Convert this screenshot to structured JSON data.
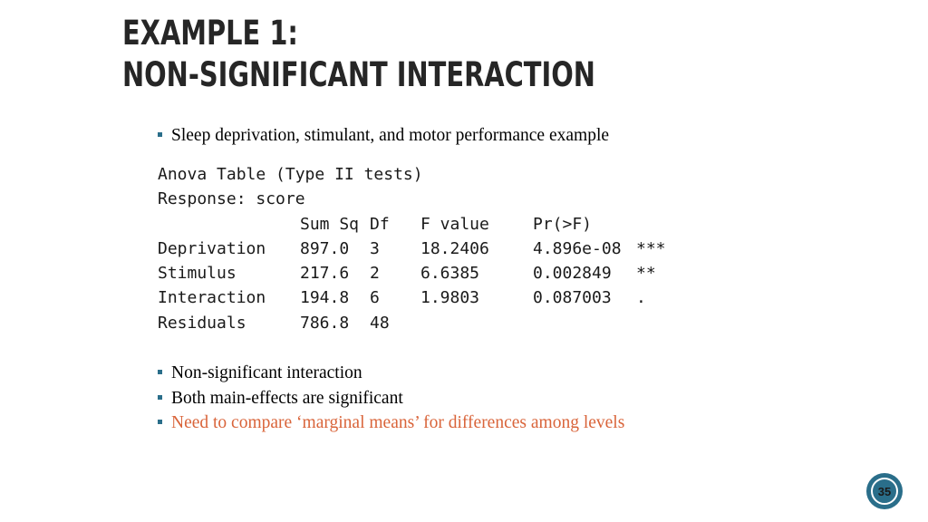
{
  "slide": {
    "title_line1": "EXAMPLE 1:",
    "title_line2": "NON-SIGNIFICANT INTERACTION",
    "page_number": "35",
    "accent_color": "#2a6e8a",
    "highlight_color": "#d9643a"
  },
  "intro_bullets": [
    {
      "text": "Sleep deprivation, stimulant, and motor performance example"
    }
  ],
  "anova": {
    "heading": "Anova Table (Type II tests)",
    "response": "Response: score",
    "columns": [
      "",
      "Sum Sq",
      "Df",
      "F value",
      "Pr(>F)",
      ""
    ],
    "rows": [
      {
        "term": "Deprivation",
        "sum_sq": "897.0",
        "df": "3",
        "f_value": "18.2406",
        "p": "4.896e-08",
        "signif": "***"
      },
      {
        "term": "Stimulus",
        "sum_sq": "217.6",
        "df": "2",
        "f_value": "6.6385",
        "p": "0.002849",
        "signif": "**"
      },
      {
        "term": "Interaction",
        "sum_sq": "194.8",
        "df": "6",
        "f_value": "1.9803",
        "p": "0.087003",
        "signif": "."
      },
      {
        "term": "Residuals",
        "sum_sq": "786.8",
        "df": "48",
        "f_value": "",
        "p": "",
        "signif": ""
      }
    ]
  },
  "summary_bullets": [
    {
      "text": "Non-significant interaction",
      "highlight": false
    },
    {
      "text": "Both main-effects are significant",
      "highlight": false
    },
    {
      "text": "Need to compare ‘marginal means’ for differences among levels",
      "highlight": true
    }
  ]
}
